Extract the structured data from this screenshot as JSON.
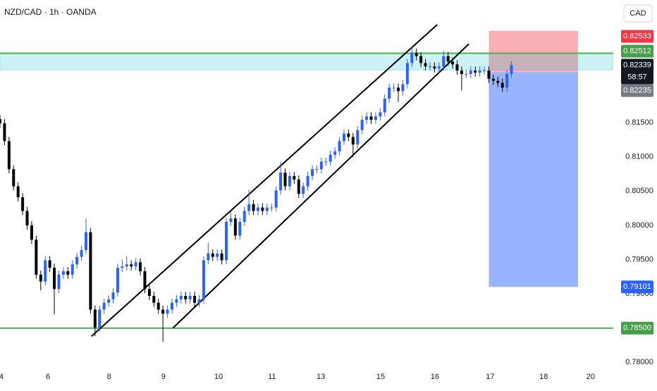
{
  "chart_data": {
    "type": "candlestick",
    "title": "NZD/CAD · 1h · OANDA",
    "currency": "CAD",
    "countdown": "58:57",
    "up_color": "#2962ff",
    "down_color": "#000000",
    "xlim": [
      0,
      135.5
    ],
    "ylim": [
      0.7789,
      0.8329
    ],
    "xticks": [
      {
        "value": 0.3,
        "label": "4"
      },
      {
        "value": 10.6,
        "label": "6"
      },
      {
        "value": 24.1,
        "label": "8"
      },
      {
        "value": 36.1,
        "label": "9"
      },
      {
        "value": 48.3,
        "label": "10"
      },
      {
        "value": 60.1,
        "label": "11"
      },
      {
        "value": 70.9,
        "label": "13"
      },
      {
        "value": 84.1,
        "label": "15"
      },
      {
        "value": 96.1,
        "label": "16"
      },
      {
        "value": 108.3,
        "label": "17"
      },
      {
        "value": 120.1,
        "label": "18"
      },
      {
        "value": 130.5,
        "label": "20"
      }
    ],
    "yticks": [
      {
        "value": 0.78,
        "label": "0.78000"
      },
      {
        "value": 0.79,
        "label": "0.79000"
      },
      {
        "value": 0.795,
        "label": "0.79500"
      },
      {
        "value": 0.8,
        "label": "0.80000"
      },
      {
        "value": 0.805,
        "label": "0.80500"
      },
      {
        "value": 0.81,
        "label": "0.81000"
      },
      {
        "value": 0.815,
        "label": "0.81500"
      }
    ],
    "x": [
      0,
      1,
      2,
      3,
      4,
      5,
      6,
      7,
      8,
      9,
      10,
      11,
      12,
      13,
      14,
      15,
      16,
      17,
      18,
      19,
      20,
      21,
      22,
      23,
      24,
      25,
      26,
      27,
      28,
      29,
      30,
      31,
      32,
      33,
      34,
      35,
      36,
      37,
      38,
      39,
      40,
      41,
      42,
      43,
      44,
      45,
      46,
      47,
      48,
      49,
      50,
      51,
      52,
      53,
      54,
      55,
      56,
      57,
      58,
      59,
      60,
      61,
      62,
      63,
      64,
      65,
      66,
      67,
      68,
      69,
      70,
      71,
      72,
      73,
      74,
      75,
      76,
      77,
      78,
      79,
      80,
      81,
      82,
      83,
      84,
      85,
      86,
      87,
      88,
      89,
      90,
      91,
      92,
      93,
      94,
      95,
      96,
      97,
      98,
      99,
      100,
      101,
      102,
      103,
      104,
      105,
      106,
      107,
      108,
      109,
      110,
      111,
      112,
      113
    ],
    "open": [
      0.8155,
      0.8149,
      0.8123,
      0.8082,
      0.8057,
      0.8041,
      0.8021,
      0.8,
      0.7979,
      0.7928,
      0.7918,
      0.7949,
      0.7938,
      0.7907,
      0.7928,
      0.7933,
      0.7928,
      0.7943,
      0.7954,
      0.7964,
      0.799,
      0.7877,
      0.7851,
      0.7877,
      0.7887,
      0.7892,
      0.7902,
      0.7938,
      0.794,
      0.7943,
      0.794,
      0.7946,
      0.7933,
      0.7907,
      0.7897,
      0.7887,
      0.7877,
      0.7871,
      0.7877,
      0.7887,
      0.7892,
      0.7897,
      0.7892,
      0.7897,
      0.7887,
      0.7892,
      0.7949,
      0.7959,
      0.7954,
      0.7959,
      0.7949,
      0.8005,
      0.801,
      0.7985,
      0.8005,
      0.8021,
      0.8031,
      0.8021,
      0.8026,
      0.8021,
      0.8026,
      0.8026,
      0.8051,
      0.8077,
      0.8057,
      0.8072,
      0.8067,
      0.8046,
      0.8057,
      0.8072,
      0.8082,
      0.8082,
      0.8093,
      0.8093,
      0.8103,
      0.8108,
      0.8123,
      0.8134,
      0.8129,
      0.8118,
      0.8139,
      0.8154,
      0.8159,
      0.8154,
      0.8159,
      0.8165,
      0.8185,
      0.8201,
      0.8201,
      0.8196,
      0.8206,
      0.8237,
      0.8252,
      0.8247,
      0.8237,
      0.8232,
      0.8232,
      0.8229,
      0.8232,
      0.8247,
      0.8239,
      0.8235,
      0.8226,
      0.8221,
      0.8221,
      0.8226,
      0.8223,
      0.8226,
      0.8226,
      0.8214,
      0.8211,
      0.8208,
      0.8201,
      0.8221
    ],
    "high": [
      0.8161,
      0.8155,
      0.8129,
      0.8088,
      0.8063,
      0.8047,
      0.8027,
      0.8006,
      0.7985,
      0.7934,
      0.7955,
      0.7955,
      0.7944,
      0.7934,
      0.7939,
      0.7939,
      0.7949,
      0.796,
      0.797,
      0.801,
      0.7996,
      0.7883,
      0.7883,
      0.7893,
      0.7898,
      0.7908,
      0.7944,
      0.795,
      0.7955,
      0.7949,
      0.7952,
      0.7952,
      0.7939,
      0.7913,
      0.7903,
      0.7893,
      0.7883,
      0.7883,
      0.7893,
      0.7898,
      0.7903,
      0.7903,
      0.7903,
      0.7903,
      0.7898,
      0.7955,
      0.7975,
      0.7965,
      0.7965,
      0.7965,
      0.8011,
      0.802,
      0.8016,
      0.8011,
      0.8027,
      0.8052,
      0.8037,
      0.8032,
      0.8032,
      0.8032,
      0.8032,
      0.8057,
      0.8093,
      0.8083,
      0.8078,
      0.8078,
      0.8073,
      0.8063,
      0.8078,
      0.8088,
      0.8088,
      0.8099,
      0.8099,
      0.8109,
      0.8114,
      0.8129,
      0.814,
      0.814,
      0.8135,
      0.8145,
      0.816,
      0.8165,
      0.8165,
      0.8165,
      0.8171,
      0.8191,
      0.8207,
      0.8207,
      0.8207,
      0.8212,
      0.8243,
      0.826,
      0.8258,
      0.8253,
      0.8243,
      0.8238,
      0.8238,
      0.8238,
      0.8255,
      0.8253,
      0.8245,
      0.8241,
      0.8232,
      0.8227,
      0.8232,
      0.8232,
      0.8232,
      0.8232,
      0.8232,
      0.822,
      0.8217,
      0.8214,
      0.8227,
      0.824
    ],
    "low": [
      0.8143,
      0.8117,
      0.8076,
      0.8051,
      0.8035,
      0.8015,
      0.7994,
      0.7973,
      0.7922,
      0.7905,
      0.7912,
      0.7932,
      0.787,
      0.7901,
      0.7922,
      0.7922,
      0.7922,
      0.7937,
      0.7948,
      0.7958,
      0.7871,
      0.7838,
      0.7845,
      0.7871,
      0.7881,
      0.7886,
      0.7896,
      0.7932,
      0.7934,
      0.7934,
      0.7934,
      0.7927,
      0.7901,
      0.7891,
      0.7881,
      0.7871,
      0.783,
      0.7865,
      0.7871,
      0.7881,
      0.7886,
      0.7886,
      0.7886,
      0.7881,
      0.7881,
      0.7886,
      0.7943,
      0.7948,
      0.7948,
      0.7943,
      0.7943,
      0.7999,
      0.7979,
      0.7979,
      0.7999,
      0.8015,
      0.8015,
      0.8015,
      0.8015,
      0.8015,
      0.802,
      0.802,
      0.8045,
      0.8051,
      0.8051,
      0.8061,
      0.804,
      0.804,
      0.8051,
      0.8066,
      0.8076,
      0.8076,
      0.8087,
      0.8087,
      0.8097,
      0.8102,
      0.8117,
      0.8123,
      0.81,
      0.8112,
      0.8133,
      0.8148,
      0.8148,
      0.8148,
      0.8153,
      0.8159,
      0.8179,
      0.8195,
      0.818,
      0.819,
      0.82,
      0.8231,
      0.8241,
      0.8231,
      0.8226,
      0.8226,
      0.8223,
      0.8223,
      0.8226,
      0.8233,
      0.8229,
      0.822,
      0.8197,
      0.8215,
      0.8215,
      0.8217,
      0.8217,
      0.822,
      0.8208,
      0.8205,
      0.8202,
      0.8195,
      0.8195,
      0.8215
    ],
    "close": [
      0.8149,
      0.8123,
      0.8082,
      0.8057,
      0.8041,
      0.8021,
      0.8,
      0.7979,
      0.7928,
      0.7918,
      0.7949,
      0.7938,
      0.7907,
      0.7928,
      0.7933,
      0.7928,
      0.7943,
      0.7954,
      0.7964,
      0.799,
      0.7877,
      0.7851,
      0.7877,
      0.7887,
      0.7892,
      0.7902,
      0.7938,
      0.794,
      0.7943,
      0.794,
      0.7946,
      0.7933,
      0.7907,
      0.7897,
      0.7887,
      0.7877,
      0.7871,
      0.7877,
      0.7887,
      0.7892,
      0.7897,
      0.7892,
      0.7897,
      0.7887,
      0.7892,
      0.7949,
      0.7959,
      0.7954,
      0.7959,
      0.7949,
      0.8005,
      0.801,
      0.7985,
      0.8005,
      0.8021,
      0.8031,
      0.8021,
      0.8026,
      0.8021,
      0.8026,
      0.8026,
      0.8051,
      0.8077,
      0.8057,
      0.8072,
      0.8067,
      0.8046,
      0.8057,
      0.8072,
      0.8082,
      0.8082,
      0.8093,
      0.8093,
      0.8103,
      0.8108,
      0.8123,
      0.8134,
      0.8129,
      0.8118,
      0.8139,
      0.8154,
      0.8159,
      0.8154,
      0.8159,
      0.8165,
      0.8185,
      0.8201,
      0.8201,
      0.8196,
      0.8206,
      0.8237,
      0.8252,
      0.8247,
      0.8237,
      0.8232,
      0.8232,
      0.8229,
      0.8232,
      0.8247,
      0.8239,
      0.8235,
      0.8226,
      0.8221,
      0.8221,
      0.8226,
      0.8223,
      0.8226,
      0.8226,
      0.8214,
      0.8211,
      0.8208,
      0.8201,
      0.8221,
      0.8234
    ],
    "zone": {
      "top": 0.82512,
      "bottom": 0.8227,
      "color": "#00bcd4"
    },
    "levels": [
      {
        "value": 0.82512,
        "color": "#4caf50"
      },
      {
        "value": 0.785,
        "color": "#4caf50"
      }
    ],
    "channels": [
      {
        "start": [
          20.2,
          0.7838
        ],
        "end": [
          96.6,
          0.8293
        ]
      },
      {
        "start": [
          38.2,
          0.785
        ],
        "end": [
          103.6,
          0.8265
        ]
      }
    ],
    "position": {
      "x": [
        108,
        127.7
      ],
      "stop": 0.8284,
      "entry": 0.82235,
      "target": 0.79101
    },
    "price_labels": [
      {
        "value": 0.82533,
        "label": "0.82533",
        "color": "#f23645"
      },
      {
        "value": 0.82512,
        "label": "0.82512",
        "color": "#43a047"
      },
      {
        "value": 0.82339,
        "label": "0.82339",
        "color": "#131722"
      },
      {
        "value": 0.82235,
        "label": "0.82235",
        "color": "#787b86"
      },
      {
        "value": 0.79101,
        "label": "0.79101",
        "color": "#2962ff"
      },
      {
        "value": 0.785,
        "label": "0.78500",
        "color": "#43a047"
      }
    ]
  }
}
